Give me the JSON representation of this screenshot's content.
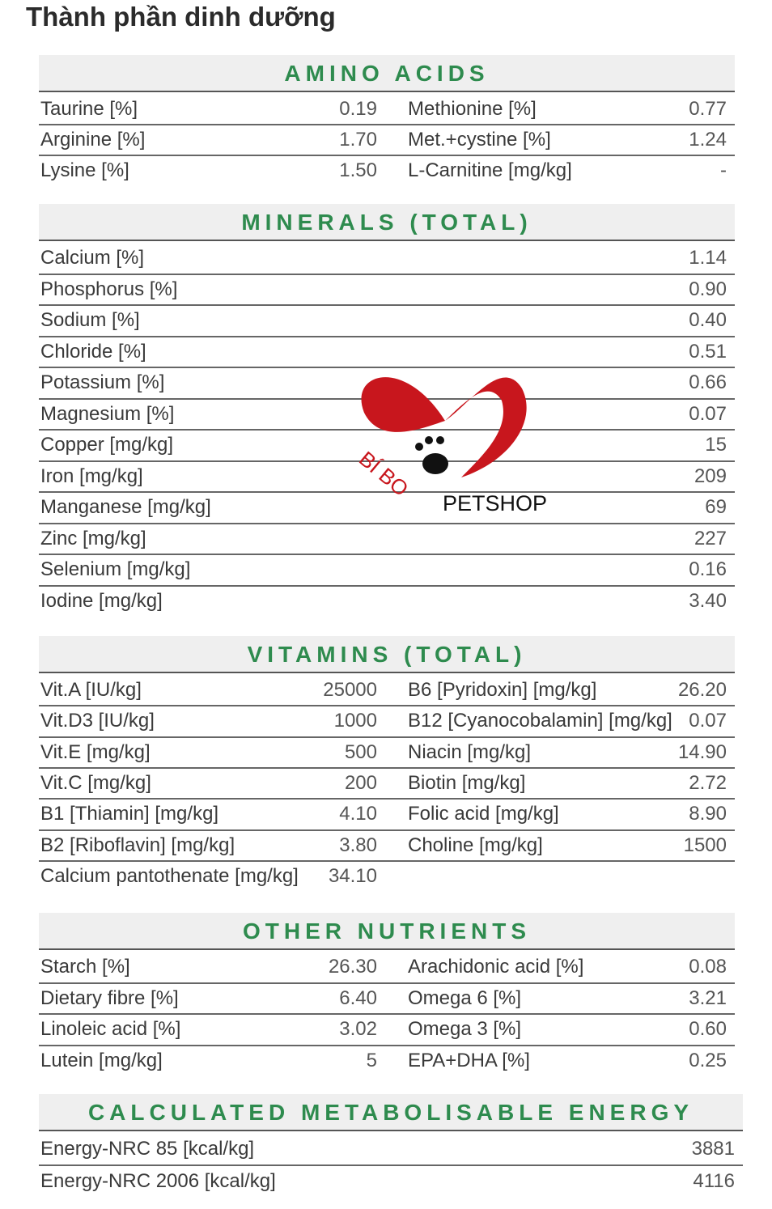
{
  "title": "Thành phần dinh dưỡng",
  "sections": [
    {
      "header": "AMINO ACIDS",
      "rows": [
        [
          "Taurine [%]",
          "0.19",
          "Methionine [%]",
          "0.77"
        ],
        [
          "Arginine [%]",
          "1.70",
          "Met.+cystine [%]",
          "1.24"
        ],
        [
          "Lysine [%]",
          "1.50",
          "L-Carnitine [mg/kg]",
          "-"
        ]
      ]
    },
    {
      "header": "MINERALS (TOTAL)",
      "rows": [
        [
          "Calcium [%]",
          "1.14"
        ],
        [
          "Phosphorus [%]",
          "0.90"
        ],
        [
          "Sodium [%]",
          "0.40"
        ],
        [
          "Chloride [%]",
          "0.51"
        ],
        [
          "Potassium [%]",
          "0.66"
        ],
        [
          "Magnesium [%]",
          "0.07"
        ],
        [
          "Copper [mg/kg]",
          "15"
        ],
        [
          "Iron [mg/kg]",
          "209"
        ],
        [
          "Manganese [mg/kg]",
          "69"
        ],
        [
          "Zinc [mg/kg]",
          "227"
        ],
        [
          "Selenium [mg/kg]",
          "0.16"
        ],
        [
          "Iodine [mg/kg]",
          "3.40"
        ]
      ]
    },
    {
      "header": "VITAMINS (TOTAL)",
      "rows": [
        [
          "Vit.A [IU/kg]",
          "25000",
          "B6 [Pyridoxin] [mg/kg]",
          "26.20"
        ],
        [
          "Vit.D3 [IU/kg]",
          "1000",
          "B12 [Cyanocobalamin] [mg/kg]",
          "0.07"
        ],
        [
          "Vit.E [mg/kg]",
          "500",
          "Niacin [mg/kg]",
          "14.90"
        ],
        [
          "Vit.C [mg/kg]",
          "200",
          "Biotin [mg/kg]",
          "2.72"
        ],
        [
          "B1 [Thiamin] [mg/kg]",
          "4.10",
          "Folic acid [mg/kg]",
          "8.90"
        ],
        [
          "B2 [Riboflavin] [mg/kg]",
          "3.80",
          "Choline [mg/kg]",
          "1500"
        ],
        [
          "Calcium pantothenate [mg/kg]",
          "34.10"
        ]
      ]
    },
    {
      "header": "OTHER NUTRIENTS",
      "rows": [
        [
          "Starch [%]",
          "26.30",
          "Arachidonic acid [%]",
          "0.08"
        ],
        [
          "Dietary fibre [%]",
          "6.40",
          "Omega 6 [%]",
          "3.21"
        ],
        [
          "Linoleic acid [%]",
          "3.02",
          "Omega 3 [%]",
          "0.60"
        ],
        [
          "Lutein [mg/kg]",
          "5",
          "EPA+DHA [%]",
          "0.25"
        ]
      ]
    },
    {
      "header": "CALCULATED METABOLISABLE ENERGY",
      "rows": [
        [
          "Energy-NRC 85 [kcal/kg]",
          "3881"
        ],
        [
          "Energy-NRC 2006 [kcal/kg]",
          "4116"
        ]
      ]
    }
  ],
  "watermark": {
    "brand": "BÍ BO",
    "shop": "PETSHOP"
  }
}
